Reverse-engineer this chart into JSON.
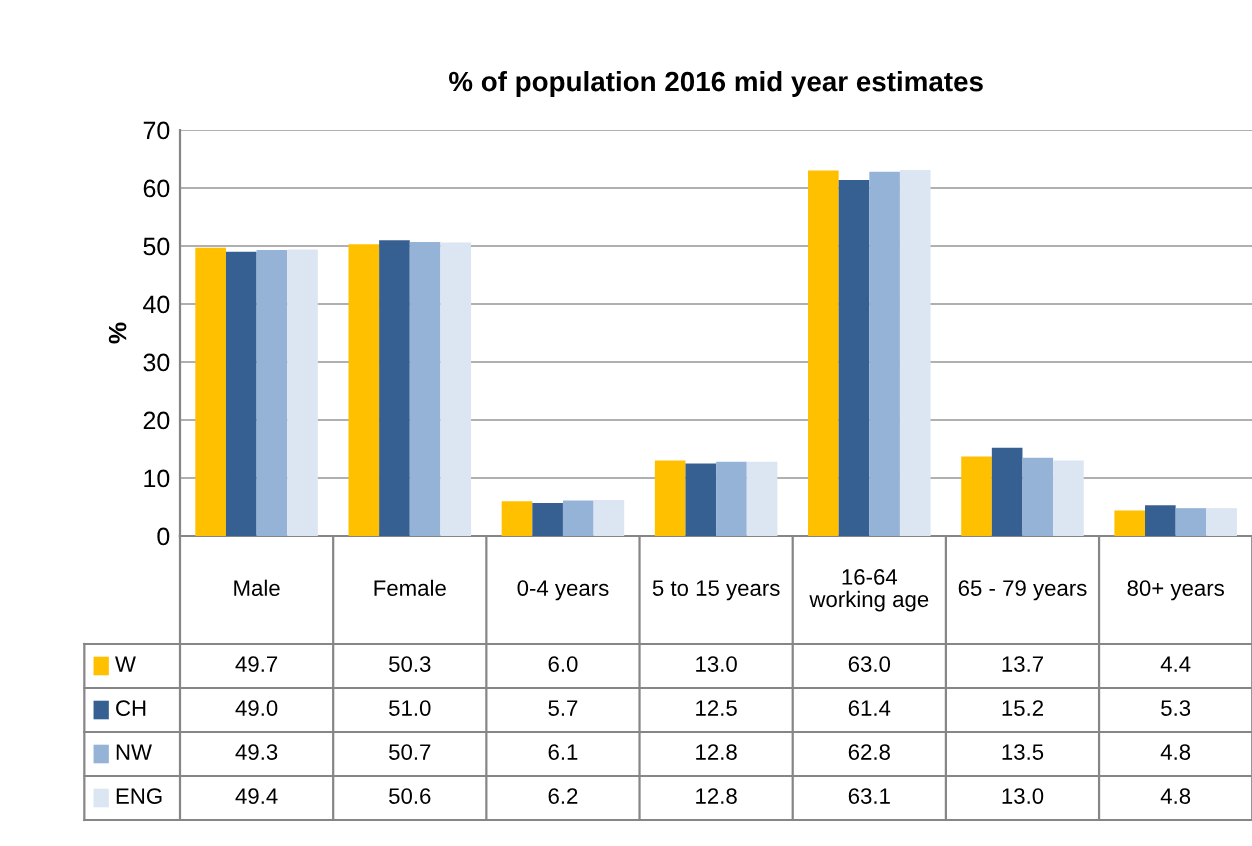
{
  "chart_data": {
    "type": "bar",
    "title": "% of population 2016 mid year estimates",
    "ylabel": "%",
    "categories": [
      "Male",
      "Female",
      "0-4 years",
      "5 to 15 years",
      "16-64 working age",
      "65 - 79 years",
      "80+ years"
    ],
    "series": [
      {
        "name": "W",
        "color": "#ffc000",
        "values": [
          49.7,
          50.3,
          6.0,
          13.0,
          63.0,
          13.7,
          4.4
        ],
        "value_labels": [
          "49.7",
          "50.3",
          "6.0",
          "13.0",
          "63.0",
          "13.7",
          "4.4"
        ]
      },
      {
        "name": "CH",
        "color": "#376092",
        "values": [
          49.0,
          51.0,
          5.7,
          12.5,
          61.4,
          15.2,
          5.3
        ],
        "value_labels": [
          "49.0",
          "51.0",
          "5.7",
          "12.5",
          "61.4",
          "15.2",
          "5.3"
        ]
      },
      {
        "name": "NW",
        "color": "#95b3d7",
        "values": [
          49.3,
          50.7,
          6.1,
          12.8,
          62.8,
          13.5,
          4.8
        ],
        "value_labels": [
          "49.3",
          "50.7",
          "6.1",
          "12.8",
          "62.8",
          "13.5",
          "4.8"
        ]
      },
      {
        "name": "ENG",
        "color": "#dce6f2",
        "values": [
          49.4,
          50.6,
          6.2,
          12.8,
          63.1,
          13.0,
          4.8
        ],
        "value_labels": [
          "49.4",
          "50.6",
          "6.2",
          "12.8",
          "63.1",
          "13.0",
          "4.8"
        ]
      }
    ],
    "ylim": [
      0,
      70
    ],
    "yticks": [
      0,
      10,
      20,
      30,
      40,
      50,
      60,
      70
    ],
    "grid": "y",
    "legend": "bottom"
  }
}
